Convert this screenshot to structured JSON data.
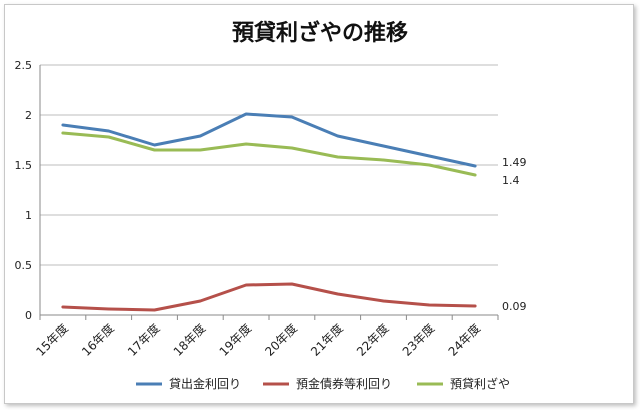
{
  "chart_data": {
    "type": "line",
    "title": "預貸利ざやの推移",
    "categories": [
      "15年度",
      "16年度",
      "17年度",
      "18年度",
      "19年度",
      "20年度",
      "21年度",
      "22年度",
      "23年度",
      "24年度"
    ],
    "ylim": [
      0,
      2.5
    ],
    "yticks": [
      "0",
      "0.5",
      "1",
      "1.5",
      "2",
      "2.5"
    ],
    "grid": true,
    "legend": "bottom",
    "series": [
      {
        "name": "貸出金利回り",
        "color": "#4a7eb5",
        "values": [
          1.9,
          1.84,
          1.7,
          1.79,
          2.01,
          1.98,
          1.79,
          1.69,
          1.59,
          1.49
        ],
        "end_label": "1.49"
      },
      {
        "name": "預金債券等利回り",
        "color": "#b5504a",
        "values": [
          0.08,
          0.06,
          0.05,
          0.14,
          0.3,
          0.31,
          0.21,
          0.14,
          0.1,
          0.09
        ],
        "end_label": "0.09"
      },
      {
        "name": "預貸利ざや",
        "color": "#99bb55",
        "values": [
          1.82,
          1.78,
          1.65,
          1.65,
          1.71,
          1.67,
          1.58,
          1.55,
          1.5,
          1.4
        ],
        "end_label": "1.4"
      }
    ]
  }
}
